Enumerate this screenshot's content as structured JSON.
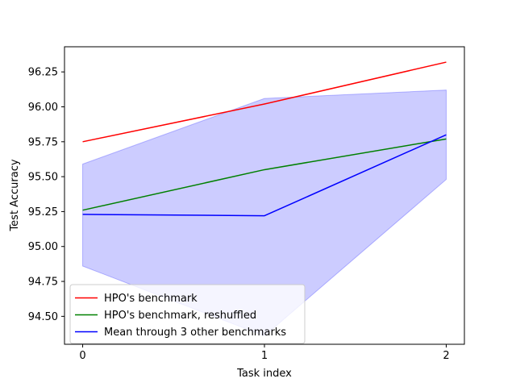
{
  "chart_data": {
    "type": "line",
    "title": "",
    "xlabel": "Task index",
    "ylabel": "Test Accuracy",
    "x": [
      0,
      1,
      2
    ],
    "x_ticks": [
      "0",
      "1",
      "2"
    ],
    "xlim": [
      -0.1,
      2.1
    ],
    "ylim": [
      94.3,
      96.43
    ],
    "y_ticks": [
      94.5,
      94.75,
      95.0,
      95.25,
      95.5,
      95.75,
      96.0,
      96.25
    ],
    "y_tick_labels": [
      "94.50",
      "94.75",
      "95.00",
      "95.25",
      "95.50",
      "95.75",
      "96.00",
      "96.25"
    ],
    "grid": false,
    "legend_position": "lower-left",
    "series": [
      {
        "name": "HPO's benchmark",
        "color": "#ff0000",
        "values": [
          95.75,
          96.02,
          96.32
        ]
      },
      {
        "name": "HPO's benchmark, reshuffled",
        "color": "#008000",
        "values": [
          95.26,
          95.55,
          95.77
        ]
      },
      {
        "name": "Mean through 3 other benchmarks",
        "color": "#0000ff",
        "values": [
          95.23,
          95.22,
          95.8
        ]
      }
    ],
    "band": {
      "series": "Mean through 3 other benchmarks",
      "color": "#0000ff",
      "opacity": 0.2,
      "upper": [
        95.59,
        96.06,
        96.12
      ],
      "lower": [
        94.86,
        94.36,
        95.48
      ]
    }
  }
}
